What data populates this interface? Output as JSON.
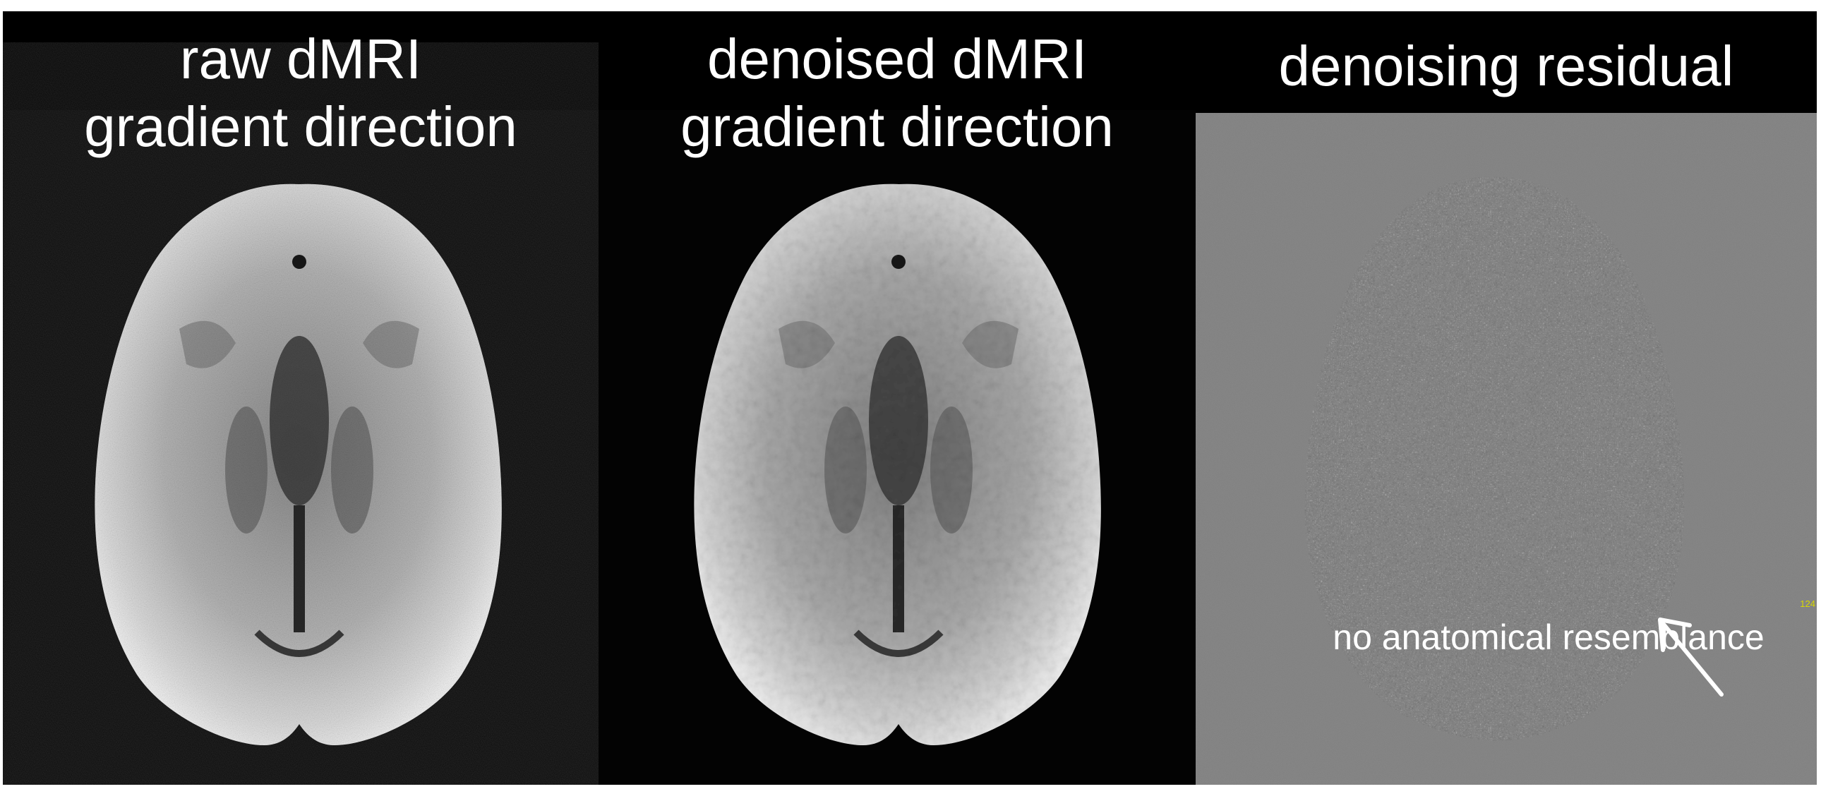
{
  "figure": {
    "panels": [
      {
        "id": "raw",
        "title_lines": [
          "raw dMRI",
          "gradient direction"
        ]
      },
      {
        "id": "denoised",
        "title_lines": [
          "denoised dMRI",
          "gradient direction"
        ]
      },
      {
        "id": "residual",
        "title_lines": [
          "denoising residual"
        ],
        "annotation": "no anatomical resemblance",
        "corner_label": "124"
      }
    ]
  },
  "colors": {
    "background": "#000000",
    "residual_gray": "#7c7c7c",
    "title_text": "#ffffff",
    "corner_label": "#d8d800"
  }
}
